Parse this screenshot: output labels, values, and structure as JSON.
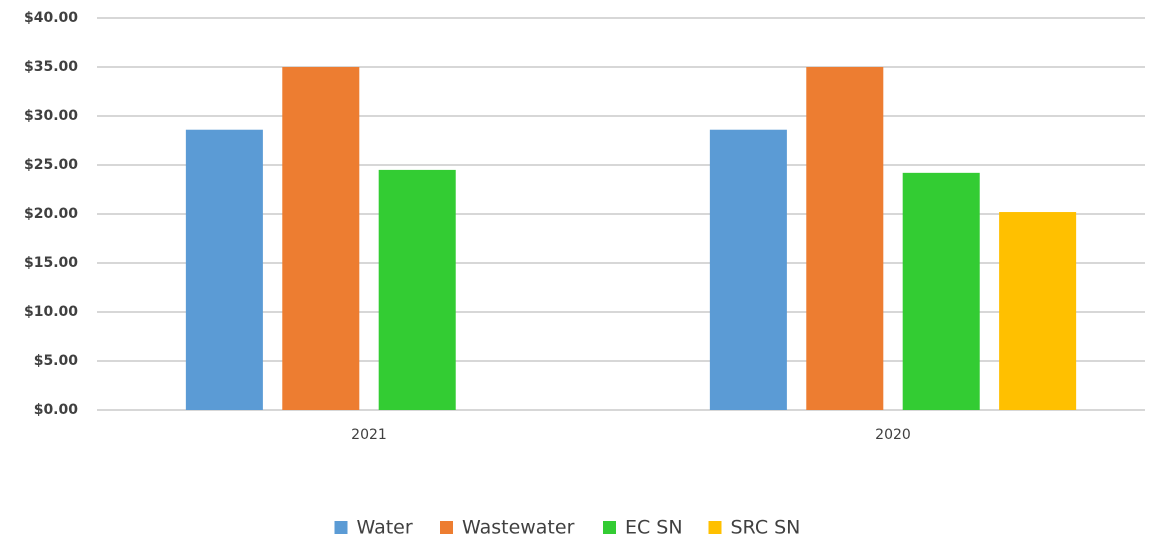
{
  "chart_data": {
    "type": "bar",
    "categories": [
      "2021",
      "2020"
    ],
    "series": [
      {
        "name": "Water",
        "color": "#5b9bd5",
        "values": [
          28.6,
          28.6
        ]
      },
      {
        "name": "Wastewater",
        "color": "#ed7d31",
        "values": [
          35,
          35
        ]
      },
      {
        "name": "EC SN",
        "color": "#33cc33",
        "values": [
          24.5,
          24.2
        ]
      },
      {
        "name": "SRC SN",
        "color": "#ffc000",
        "values": [
          null,
          20.2
        ]
      }
    ],
    "ylim": [
      0,
      40
    ],
    "yticks": [
      {
        "value": 0,
        "label": "$0.00"
      },
      {
        "value": 5,
        "label": "$5.00"
      },
      {
        "value": 10,
        "label": "$10.00"
      },
      {
        "value": 15,
        "label": "$15.00"
      },
      {
        "value": 20,
        "label": "$20.00"
      },
      {
        "value": 25,
        "label": "$25.00"
      },
      {
        "value": 30,
        "label": "$30.00"
      },
      {
        "value": 35,
        "label": "$35.00"
      },
      {
        "value": 40,
        "label": "$40.00"
      }
    ],
    "grid": true,
    "legend": "bottom"
  }
}
